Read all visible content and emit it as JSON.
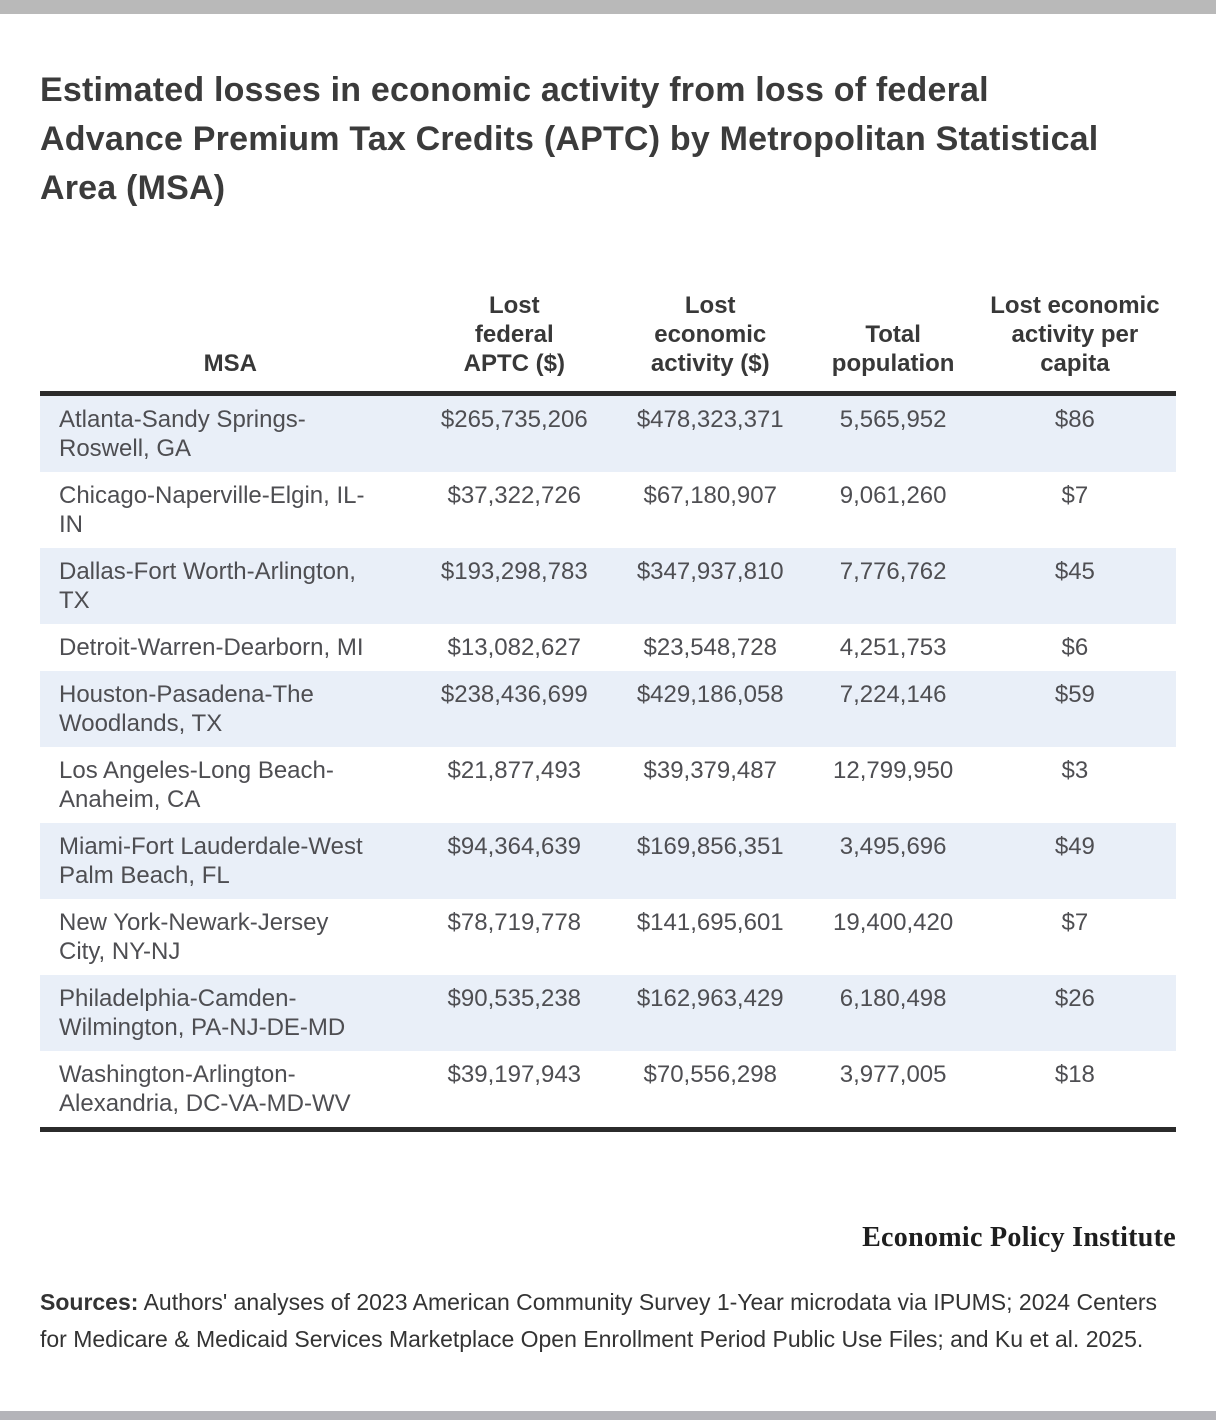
{
  "page": {
    "title": "Estimated losses in economic activity from loss of federal Advance Premium Tax Credits (APTC) by Metropolitan Statistical Area (MSA)"
  },
  "chart_data": {
    "type": "table",
    "title": "Estimated losses in economic activity from loss of federal Advance Premium Tax Credits (APTC) by Metropolitan Statistical Area (MSA)",
    "columns": [
      "MSA",
      "Lost federal APTC ($)",
      "Lost economic activity ($)",
      "Total population",
      "Lost economic activity per capita"
    ],
    "rows": [
      [
        "Atlanta-Sandy Springs-Roswell, GA",
        "$265,735,206",
        "$478,323,371",
        "5,565,952",
        "$86"
      ],
      [
        "Chicago-Naperville-Elgin, IL-IN",
        "$37,322,726",
        "$67,180,907",
        "9,061,260",
        "$7"
      ],
      [
        "Dallas-Fort Worth-Arlington, TX",
        "$193,298,783",
        "$347,937,810",
        "7,776,762",
        "$45"
      ],
      [
        "Detroit-Warren-Dearborn, MI",
        "$13,082,627",
        "$23,548,728",
        "4,251,753",
        "$6"
      ],
      [
        "Houston-Pasadena-The Woodlands, TX",
        "$238,436,699",
        "$429,186,058",
        "7,224,146",
        "$59"
      ],
      [
        "Los Angeles-Long Beach-Anaheim, CA",
        "$21,877,493",
        "$39,379,487",
        "12,799,950",
        "$3"
      ],
      [
        "Miami-Fort Lauderdale-West Palm Beach, FL",
        "$94,364,639",
        "$169,856,351",
        "3,495,696",
        "$49"
      ],
      [
        "New York-Newark-Jersey City, NY-NJ",
        "$78,719,778",
        "$141,695,601",
        "19,400,420",
        "$7"
      ],
      [
        "Philadelphia-Camden-Wilmington, PA-NJ-DE-MD",
        "$90,535,238",
        "$162,963,429",
        "6,180,498",
        "$26"
      ],
      [
        "Washington-Arlington-Alexandria, DC-VA-MD-WV",
        "$39,197,943",
        "$70,556,298",
        "3,977,005",
        "$18"
      ]
    ]
  },
  "footer": {
    "logo": "Economic Policy Institute",
    "sources_label": "Sources:",
    "sources_text": "Authors' analyses of 2023 American Community Survey 1-Year microdata via IPUMS; 2024 Centers for Medicare & Medicaid Services Marketplace Open Enrollment Period Public Use Files; and Ku et al. 2025."
  },
  "colors": {
    "row_stripe": "#e9eff8",
    "rule": "#2b2b2b",
    "title_text": "#3b3b3b",
    "cell_text": "#4e4e52",
    "top_bar": "#b9b9b9",
    "bottom_bar": "#b4b4b9"
  }
}
